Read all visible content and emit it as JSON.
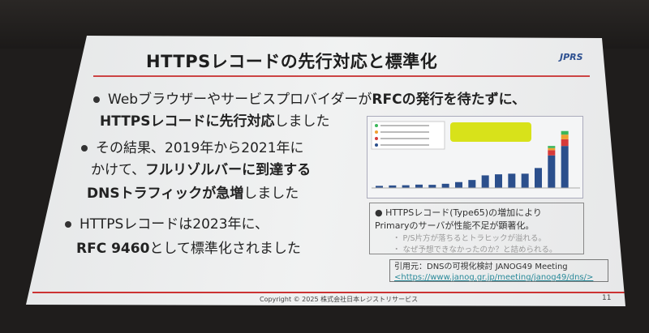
{
  "slide": {
    "title": "HTTPSレコードの先行対応と標準化",
    "logo": "JPRS",
    "bullets": [
      {
        "line1_pre": "Webブラウザーやサービスプロバイダーが",
        "line1_bold": "RFCの発行を待たずに、",
        "line2_bold": "HTTPSレコードに先行対応",
        "line2_post": "しました"
      },
      {
        "line1": "その結果、2019年から2021年に",
        "line2_pre": "かけて、",
        "line2_bold": "フルリゾルバーに到達する",
        "line3_bold": "DNSトラフィックが急増",
        "line3_post": "しました"
      },
      {
        "line1": "HTTPSレコードは2023年に、",
        "line2_bold": "RFC 9460",
        "line2_post": "として標準化されました"
      }
    ],
    "note": {
      "main": "HTTPSレコード(Type65)の増加により Primaryのサーバが性能不足が顕著化。",
      "subs": [
        "P/S片方が落ちるとトラヒックが溢れる。",
        "なぜ予想できなかったのか？と詰められる。"
      ]
    },
    "citation": {
      "label": "引用元：DNSの可視化検討 JANOG49 Meeting",
      "url": "<https://www.janog.gr.jp/meeting/janog49/dns/>"
    },
    "copyright": "Copyright © 2025 株式会社日本レジストリサービス",
    "page_number": "11"
  },
  "chart_data": {
    "type": "bar",
    "stacked": true,
    "colors": [
      "#2b4f8c",
      "#d63a3a",
      "#f0a030",
      "#3cb65a"
    ],
    "callout_color": "#d8e21a",
    "series": [
      {
        "values": [
          1,
          1.2,
          1.3,
          1.6,
          1.5,
          2,
          2.8,
          3.8,
          6,
          6.5,
          6.8,
          6.8,
          9.5,
          15.5,
          20
        ]
      },
      {
        "values": [
          0,
          0,
          0,
          0,
          0,
          0,
          0,
          0,
          0,
          0,
          0,
          0,
          0,
          2.5,
          3.2
        ]
      },
      {
        "values": [
          0,
          0,
          0,
          0,
          0,
          0,
          0,
          0,
          0,
          0,
          0,
          0,
          0,
          1,
          2.2
        ]
      },
      {
        "values": [
          0,
          0,
          0,
          0,
          0,
          0,
          0,
          0,
          0,
          0,
          0,
          0,
          0,
          1,
          1.7
        ]
      }
    ]
  }
}
